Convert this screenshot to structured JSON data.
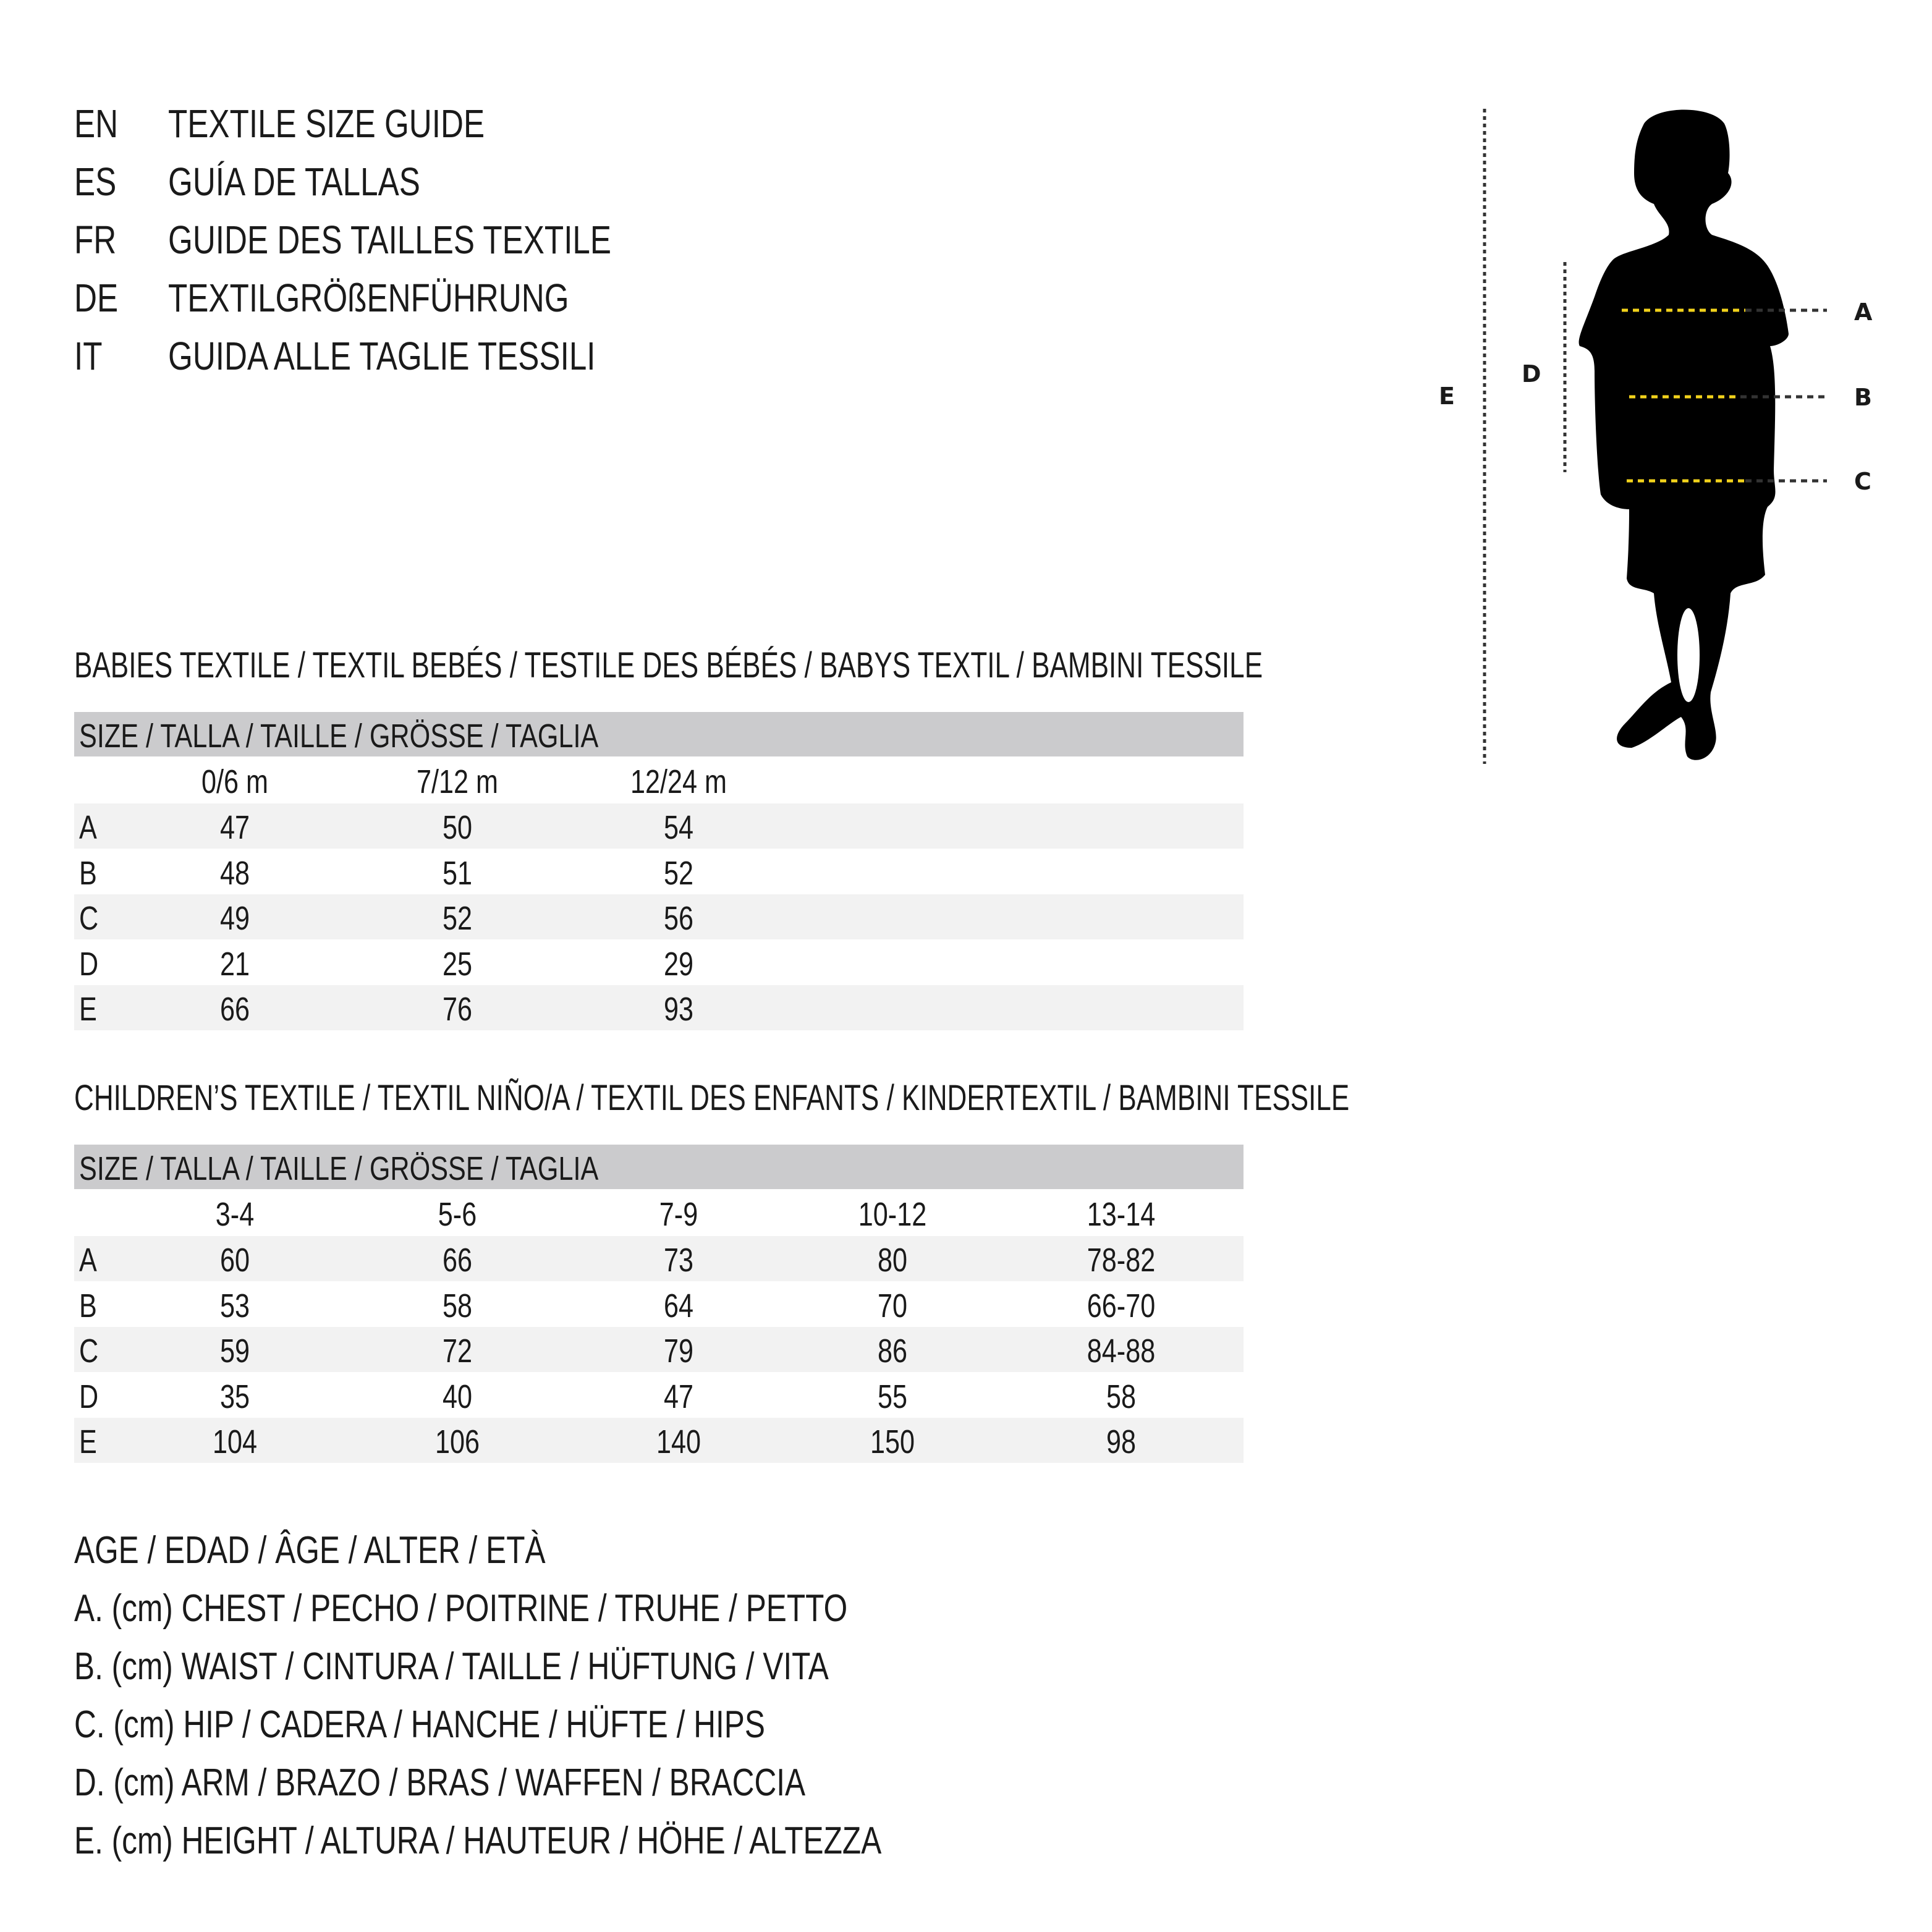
{
  "titles": [
    {
      "code": "EN",
      "text": "TEXTILE SIZE GUIDE"
    },
    {
      "code": "ES",
      "text": "GUÍA DE TALLAS"
    },
    {
      "code": "FR",
      "text": "GUIDE DES TAILLES TEXTILE"
    },
    {
      "code": "DE",
      "text": "TEXTILGRÖßENFÜHRUNG"
    },
    {
      "code": "IT",
      "text": "GUIDA ALLE TAGLIE TESSILI"
    }
  ],
  "babies": {
    "heading": "BABIES TEXTILE / TEXTIL BEBÉS / TESTILE DES BÉBÉS / BABYS TEXTIL / BAMBINI TESSILE",
    "size_label": "SIZE / TALLA / TAILLE / GRÖSSE / TAGLIA",
    "columns": [
      "0/6 m",
      "7/12 m",
      "12/24 m"
    ],
    "rows": [
      {
        "label": "A",
        "values": [
          "47",
          "50",
          "54"
        ]
      },
      {
        "label": "B",
        "values": [
          "48",
          "51",
          "52"
        ]
      },
      {
        "label": "C",
        "values": [
          "49",
          "52",
          "56"
        ]
      },
      {
        "label": "D",
        "values": [
          "21",
          "25",
          "29"
        ]
      },
      {
        "label": "E",
        "values": [
          "66",
          "76",
          "93"
        ]
      }
    ]
  },
  "children": {
    "heading": "CHILDREN’S TEXTILE / TEXTIL NIÑO/A / TEXTIL DES ENFANTS / KINDERTEXTIL / BAMBINI TESSILE",
    "size_label": "SIZE / TALLA / TAILLE / GRÖSSE / TAGLIA",
    "columns": [
      "3-4",
      "5-6",
      "7-9",
      "10-12",
      "13-14"
    ],
    "rows": [
      {
        "label": "A",
        "values": [
          "60",
          "66",
          "73",
          "80",
          "78-82"
        ]
      },
      {
        "label": "B",
        "values": [
          "53",
          "58",
          "64",
          "70",
          "66-70"
        ]
      },
      {
        "label": "C",
        "values": [
          "59",
          "72",
          "79",
          "86",
          "84-88"
        ]
      },
      {
        "label": "D",
        "values": [
          "35",
          "40",
          "47",
          "55",
          "58"
        ]
      },
      {
        "label": "E",
        "values": [
          "104",
          "106",
          "140",
          "150",
          "98"
        ]
      }
    ]
  },
  "legend": [
    "AGE / EDAD / ÂGE / ALTER / ETÀ",
    "A. (cm) CHEST / PECHO / POITRINE / TRUHE / PETTO",
    "B. (cm) WAIST / CINTURA / TAILLE / HÜFTUNG / VITA",
    "C. (cm) HIP / CADERA / HANCHE / HÜFTE / HIPS",
    "D. (cm) ARM / BRAZO / BRAS / WAFFEN / BRACCIA",
    "E. (cm) HEIGHT / ALTURA / HAUTEUR / HÖHE / ALTEZZA"
  ],
  "figure": {
    "icon": "child-silhouette-icon",
    "labels": {
      "A": "A",
      "B": "B",
      "C": "C",
      "D": "D",
      "E": "E"
    },
    "colors": {
      "silhouette": "#000000",
      "measure_line": "#f2d21b",
      "guide_line": "#333333"
    }
  }
}
